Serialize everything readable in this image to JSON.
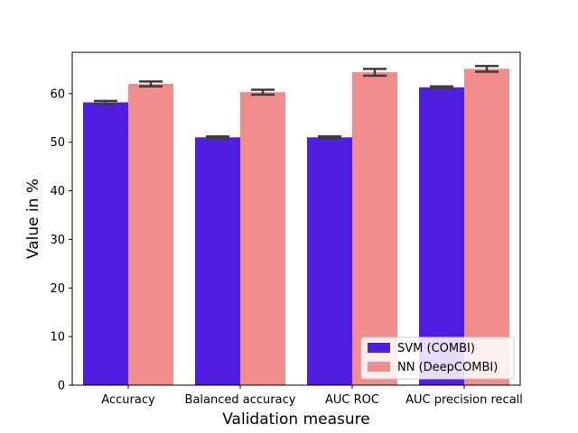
{
  "chart_data": {
    "type": "bar",
    "title": "",
    "xlabel": "Validation measure",
    "ylabel": "Value in %",
    "ylim": [
      0,
      68.5
    ],
    "yticks": [
      0,
      10,
      20,
      30,
      40,
      50,
      60
    ],
    "categories": [
      "Accuracy",
      "Balanced accuracy",
      "AUC ROC",
      "AUC precision recall"
    ],
    "series": [
      {
        "name": "SVM (COMBI)",
        "color": "#501ee1",
        "values": [
          58.2,
          51.0,
          51.0,
          61.3
        ],
        "err": [
          0.3,
          0.2,
          0.2,
          0.2
        ]
      },
      {
        "name": "NN (DeepCOMBI)",
        "color": "#f08c8c",
        "values": [
          62.0,
          60.3,
          64.4,
          65.1
        ],
        "err": [
          0.5,
          0.5,
          0.7,
          0.6
        ]
      }
    ],
    "error_bar_color": "#3c3c3c",
    "legend": "lower-right",
    "grid": false
  }
}
